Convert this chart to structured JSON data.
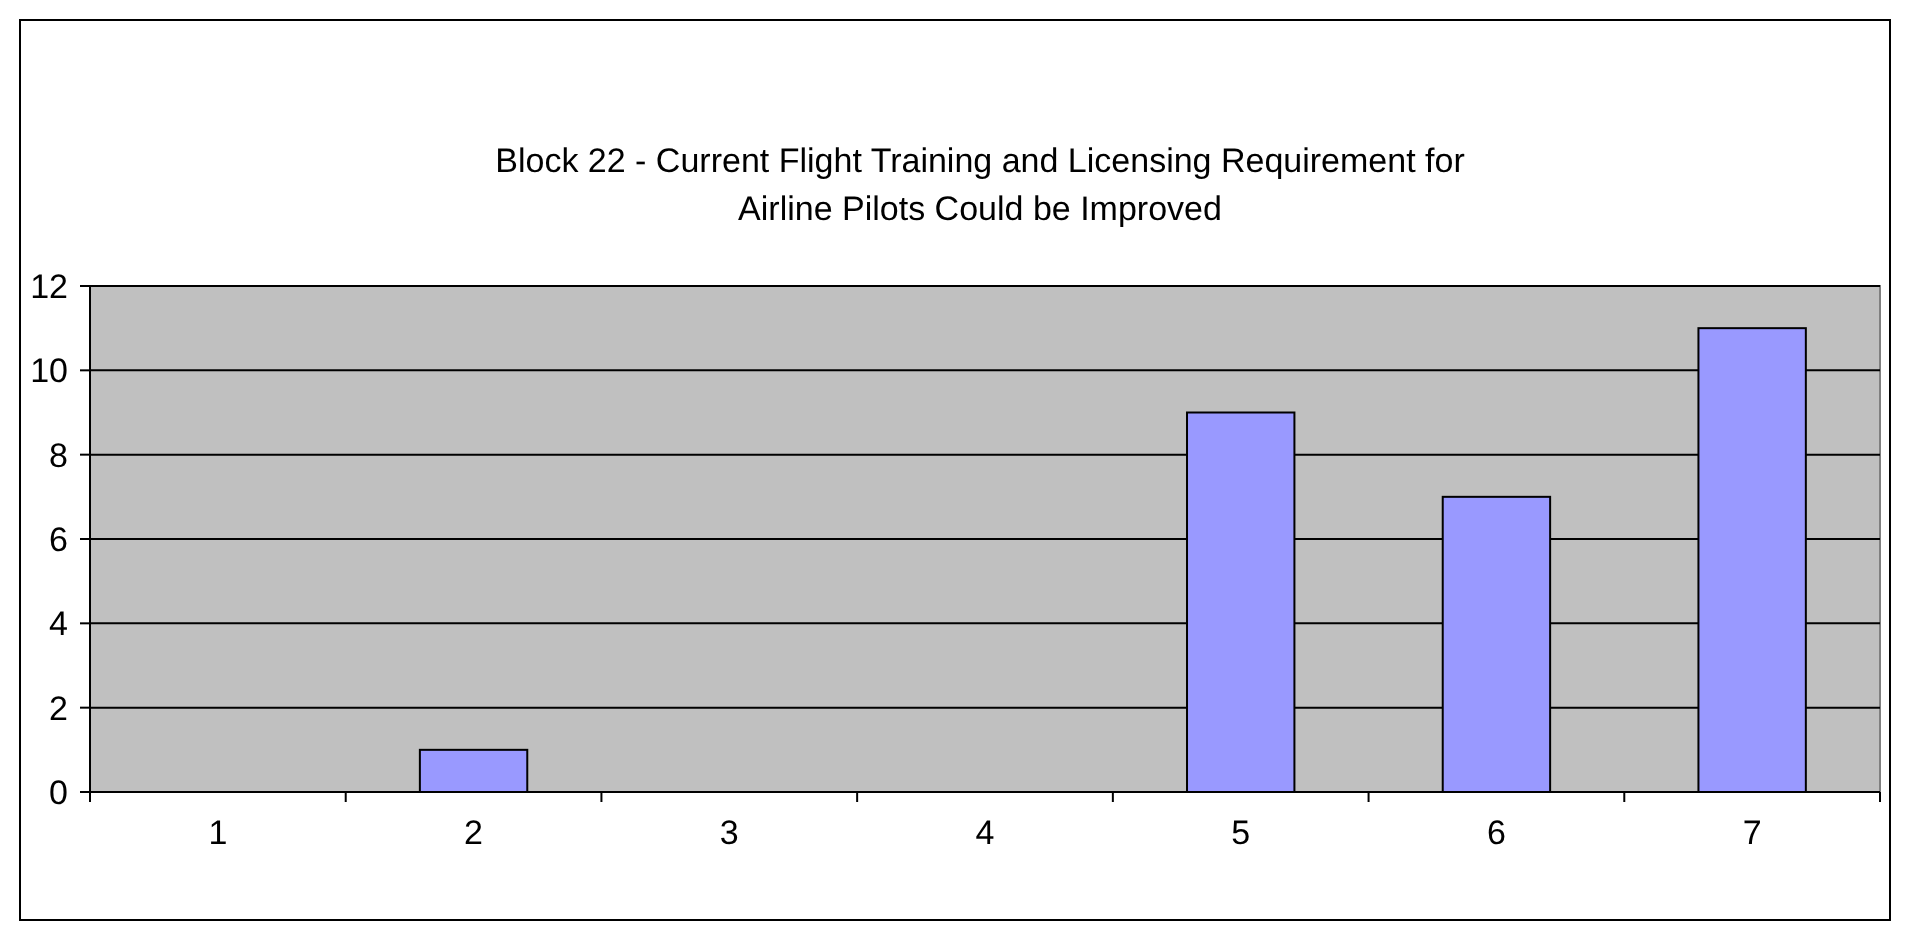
{
  "chart_data": {
    "type": "bar",
    "title": "Block 22 - Current Flight Training and Licensing Requirement for Airline Pilots Could be Improved",
    "categories": [
      "1",
      "2",
      "3",
      "4",
      "5",
      "6",
      "7"
    ],
    "values": [
      0,
      1,
      0,
      0,
      9,
      7,
      11
    ],
    "color": "#9999ff",
    "ylim": [
      0,
      12
    ],
    "yticks": [
      0,
      2,
      4,
      6,
      8,
      10,
      12
    ],
    "grid": "y"
  }
}
